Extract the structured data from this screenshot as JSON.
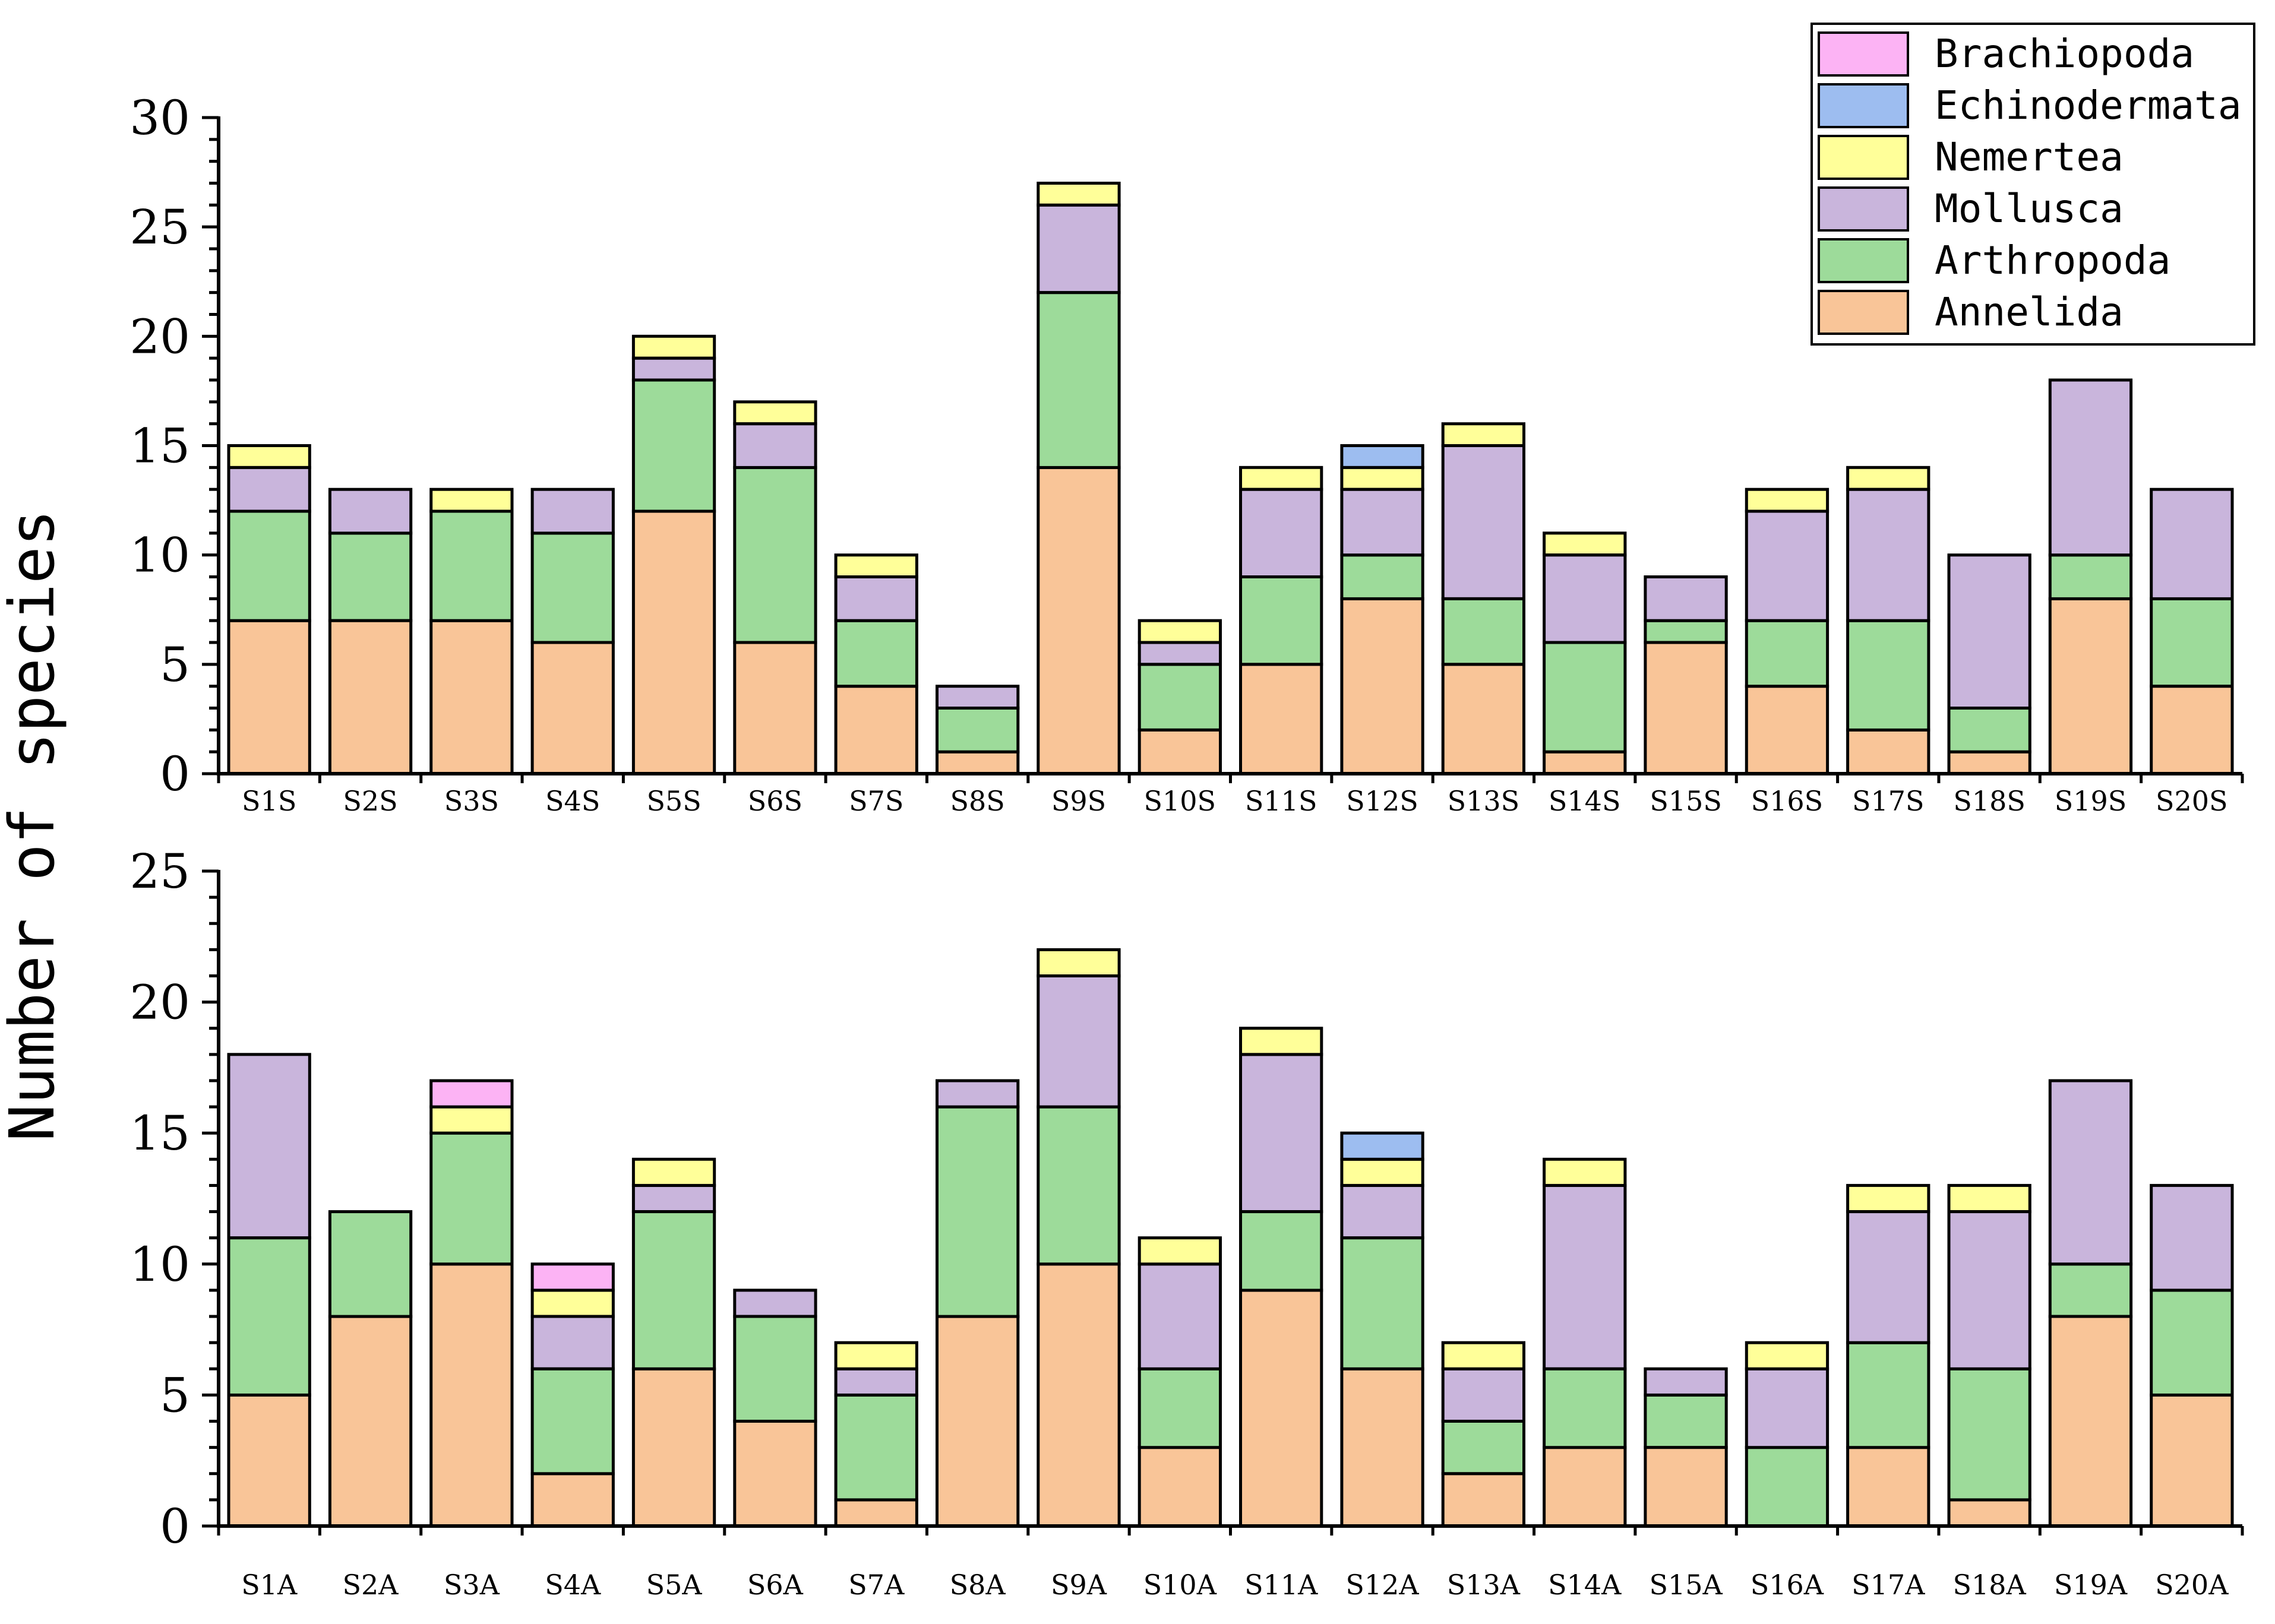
{
  "chart_data": {
    "type": "stacked-bar",
    "ylabel": "Number of species",
    "legend": {
      "position": "top-right",
      "entries": [
        "Brachiopoda",
        "Echinodermata",
        "Nemertea",
        "Mollusca",
        "Arthropoda",
        "Annelida"
      ]
    },
    "colors": {
      "Annelida": "#f9c598",
      "Arthropoda": "#9ddb9a",
      "Mollusca": "#c9b5dc",
      "Nemertea": "#ffff99",
      "Echinodermata": "#9dbdf0",
      "Brachiopoda": "#fcb3f4"
    },
    "stack_order": [
      "Annelida",
      "Arthropoda",
      "Mollusca",
      "Nemertea",
      "Echinodermata",
      "Brachiopoda"
    ],
    "panels": [
      {
        "id": "top",
        "ylim": [
          0,
          30
        ],
        "yticks": [
          0,
          5,
          10,
          15,
          20,
          25,
          30
        ],
        "categories": [
          "S1S",
          "S2S",
          "S3S",
          "S4S",
          "S5S",
          "S6S",
          "S7S",
          "S8S",
          "S9S",
          "S10S",
          "S11S",
          "S12S",
          "S13S",
          "S14S",
          "S15S",
          "S16S",
          "S17S",
          "S18S",
          "S19S",
          "S20S"
        ],
        "series": [
          {
            "name": "Annelida",
            "values": [
              7,
              7,
              7,
              6,
              12,
              6,
              4,
              1,
              14,
              2,
              5,
              8,
              5,
              1,
              6,
              4,
              2,
              1,
              8,
              4
            ]
          },
          {
            "name": "Arthropoda",
            "values": [
              5,
              4,
              5,
              5,
              6,
              8,
              3,
              2,
              8,
              3,
              4,
              2,
              3,
              5,
              1,
              3,
              5,
              2,
              2,
              4
            ]
          },
          {
            "name": "Mollusca",
            "values": [
              2,
              2,
              0,
              2,
              1,
              2,
              2,
              1,
              4,
              1,
              4,
              3,
              7,
              4,
              2,
              5,
              6,
              7,
              8,
              5
            ]
          },
          {
            "name": "Nemertea",
            "values": [
              1,
              0,
              1,
              0,
              1,
              1,
              1,
              0,
              1,
              1,
              1,
              1,
              1,
              1,
              0,
              1,
              1,
              0,
              0,
              0
            ]
          },
          {
            "name": "Echinodermata",
            "values": [
              0,
              0,
              0,
              0,
              0,
              0,
              0,
              0,
              0,
              0,
              0,
              1,
              0,
              0,
              0,
              0,
              0,
              0,
              0,
              0
            ]
          },
          {
            "name": "Brachiopoda",
            "values": [
              0,
              0,
              0,
              0,
              0,
              0,
              0,
              0,
              0,
              0,
              0,
              0,
              0,
              0,
              0,
              0,
              0,
              0,
              0,
              0
            ]
          }
        ]
      },
      {
        "id": "bottom",
        "ylim": [
          0,
          25
        ],
        "yticks": [
          0,
          5,
          10,
          15,
          20,
          25
        ],
        "categories": [
          "S1A",
          "S2A",
          "S3A",
          "S4A",
          "S5A",
          "S6A",
          "S7A",
          "S8A",
          "S9A",
          "S10A",
          "S11A",
          "S12A",
          "S13A",
          "S14A",
          "S15A",
          "S16A",
          "S17A",
          "S18A",
          "S19A",
          "S20A"
        ],
        "series": [
          {
            "name": "Annelida",
            "values": [
              5,
              8,
              10,
              2,
              6,
              4,
              1,
              8,
              10,
              3,
              9,
              6,
              2,
              3,
              3,
              0,
              3,
              1,
              8,
              5
            ]
          },
          {
            "name": "Arthropoda",
            "values": [
              6,
              4,
              5,
              4,
              6,
              4,
              4,
              8,
              6,
              3,
              3,
              5,
              2,
              3,
              2,
              3,
              4,
              5,
              2,
              4
            ]
          },
          {
            "name": "Mollusca",
            "values": [
              7,
              0,
              0,
              2,
              1,
              1,
              1,
              1,
              5,
              4,
              6,
              2,
              2,
              7,
              1,
              3,
              5,
              6,
              7,
              4
            ]
          },
          {
            "name": "Nemertea",
            "values": [
              0,
              0,
              1,
              1,
              1,
              0,
              1,
              0,
              1,
              1,
              1,
              1,
              1,
              1,
              0,
              1,
              1,
              1,
              0,
              0
            ]
          },
          {
            "name": "Echinodermata",
            "values": [
              0,
              0,
              0,
              0,
              0,
              0,
              0,
              0,
              0,
              0,
              0,
              1,
              0,
              0,
              0,
              0,
              0,
              0,
              0,
              0
            ]
          },
          {
            "name": "Brachiopoda",
            "values": [
              0,
              0,
              1,
              1,
              0,
              0,
              0,
              0,
              0,
              0,
              0,
              0,
              0,
              0,
              0,
              0,
              0,
              0,
              0,
              0
            ]
          }
        ]
      }
    ]
  }
}
